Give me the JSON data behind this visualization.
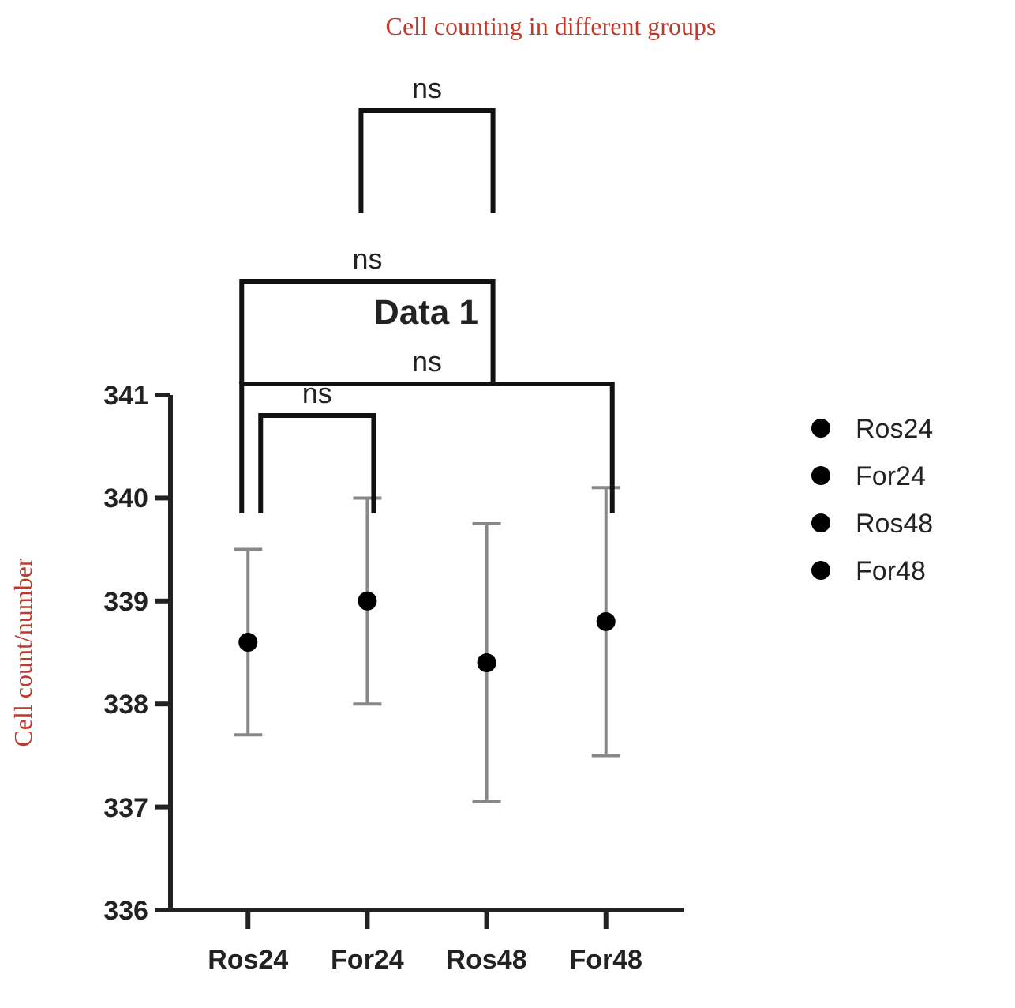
{
  "chart_data": {
    "type": "scatter",
    "title": "Cell counting in different groups",
    "subtitle": "Data 1",
    "ylabel": "Cell count/number",
    "categories": [
      "Ros24",
      "For24",
      "Ros48",
      "For48"
    ],
    "series": [
      {
        "name": "Ros24",
        "color": "#000000",
        "x": [
          "Ros24"
        ],
        "values": [
          338.6
        ],
        "errors": [
          0.9
        ]
      },
      {
        "name": "For24",
        "color": "#000000",
        "x": [
          "For24"
        ],
        "values": [
          339.0
        ],
        "errors": [
          1.0
        ]
      },
      {
        "name": "Ros48",
        "color": "#000000",
        "x": [
          "Ros48"
        ],
        "values": [
          338.4
        ],
        "errors": [
          [
            337.05,
            339.75
          ]
        ]
      },
      {
        "name": "For48",
        "color": "#000000",
        "x": [
          "For48"
        ],
        "values": [
          338.8
        ],
        "errors": [
          [
            337.5,
            340.1
          ]
        ]
      }
    ],
    "ylim": [
      336,
      341
    ],
    "yticks": [
      336,
      337,
      338,
      339,
      340,
      341
    ],
    "grid": false,
    "legend": "right",
    "marker": "circle",
    "annotations": [
      "ns",
      "ns",
      "ns",
      "ns"
    ]
  }
}
